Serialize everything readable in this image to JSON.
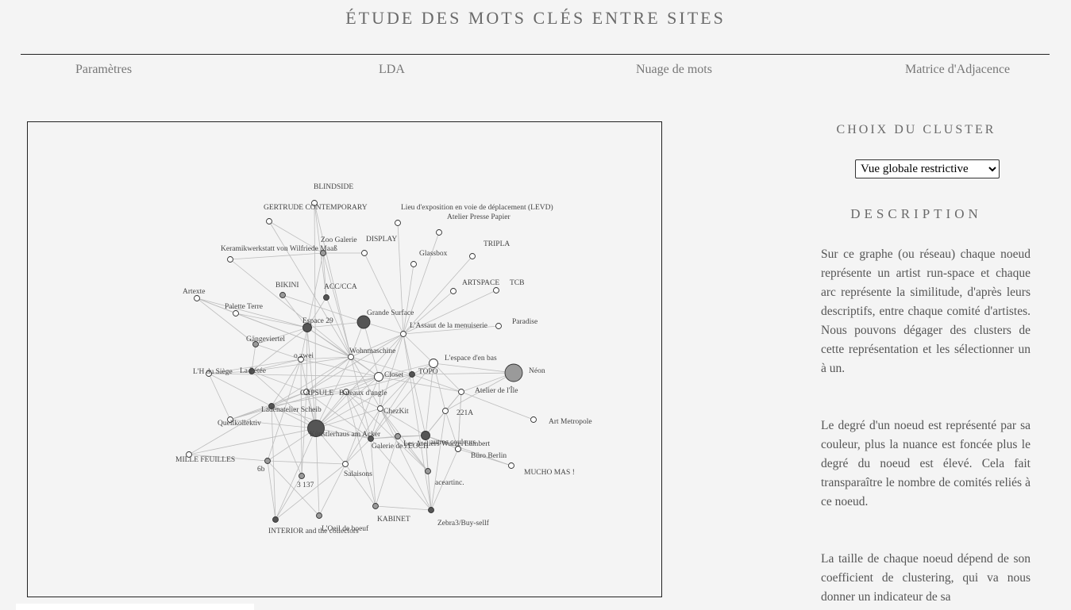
{
  "page": {
    "title": "ÉTUDE DES MOTS CLÉS ENTRE SITES",
    "nav": [
      "Paramètres",
      "LDA",
      "Nuage de mots",
      "Matrice d'Adjacence"
    ]
  },
  "sidebar": {
    "cluster_heading": "CHOIX DU CLUSTER",
    "select_value": "Vue globale restrictive",
    "description_heading": "DESCRIPTION",
    "paragraphs": [
      "Sur ce graphe (ou réseau) chaque noeud représente un artist run-space et chaque arc représente la similitude, d'après leurs descriptifs, entre chaque comité d'artistes. Nous pouvons dégager des clusters de cette représentation et les sélectionner un à un.",
      "Le degré d'un noeud est représenté par sa couleur, plus la nuance est foncée plus le degré du noeud est élevé. Cela fait transparaître le nombre de comités reliés à ce noeud.",
      "La taille de chaque noeud dépend de son coefficient de clustering, qui va nous donner un indicateur de sa"
    ]
  },
  "graph": {
    "nodes": [
      {
        "id": "BLINDSIDE",
        "label": "BLINDSIDE",
        "degree": "low",
        "clustering": "low"
      },
      {
        "id": "GERTRUDE",
        "label": "GERTRUDE CONTEMPORARY",
        "degree": "low",
        "clustering": "low"
      },
      {
        "id": "LEVD",
        "label": "Lieu d'exposition en voie de déplacement (LEVD)",
        "degree": "low",
        "clustering": "low"
      },
      {
        "id": "PRESSE",
        "label": "Atelier Presse Papier",
        "degree": "low",
        "clustering": "low"
      },
      {
        "id": "ZOO",
        "label": "Zoo Galerie",
        "degree": "medium",
        "clustering": "low"
      },
      {
        "id": "DISPLAY",
        "label": "DISPLAY",
        "degree": "low",
        "clustering": "low"
      },
      {
        "id": "TRIPLA",
        "label": "TRIPLA",
        "degree": "low",
        "clustering": "low"
      },
      {
        "id": "KERAMIK",
        "label": "Keramikwerkstatt von Wilfriede Maaß",
        "degree": "low",
        "clustering": "low"
      },
      {
        "id": "GLASSBOX",
        "label": "Glassbox",
        "degree": "low",
        "clustering": "low"
      },
      {
        "id": "BIKINI",
        "label": "BIKINI",
        "degree": "medium",
        "clustering": "low"
      },
      {
        "id": "ACC",
        "label": "ACC/CCA",
        "degree": "high",
        "clustering": "low"
      },
      {
        "id": "ARTSPACE",
        "label": "ARTSPACE",
        "degree": "low",
        "clustering": "low"
      },
      {
        "id": "TCB",
        "label": "TCB",
        "degree": "low",
        "clustering": "low"
      },
      {
        "id": "ARTEXTE",
        "label": "Artexte",
        "degree": "low",
        "clustering": "low"
      },
      {
        "id": "PALETTE",
        "label": "Palette Terre",
        "degree": "low",
        "clustering": "low"
      },
      {
        "id": "GRANDE",
        "label": "Grande Surface",
        "degree": "high",
        "clustering": "high"
      },
      {
        "id": "ESPACE29",
        "label": "Espace 29",
        "degree": "high",
        "clustering": "medium"
      },
      {
        "id": "ASSAUT",
        "label": "L'Assaut de la menuiserie",
        "degree": "low",
        "clustering": "low"
      },
      {
        "id": "PARADISE",
        "label": "Paradise",
        "degree": "low",
        "clustering": "low"
      },
      {
        "id": "GANGE",
        "label": "Gängeviertel",
        "degree": "medium",
        "clustering": "low"
      },
      {
        "id": "OZWEI",
        "label": "o.zwei",
        "degree": "low",
        "clustering": "low"
      },
      {
        "id": "WOHN",
        "label": "Wohnmaschine",
        "degree": "low",
        "clustering": "low"
      },
      {
        "id": "ENBAS",
        "label": "L'espace d'en bas",
        "degree": "low",
        "clustering": "medium"
      },
      {
        "id": "NEON",
        "label": "Néon",
        "degree": "medium",
        "clustering": "high"
      },
      {
        "id": "HDU",
        "label": "L'H du Siège",
        "degree": "low",
        "clustering": "low"
      },
      {
        "id": "LAPETEE",
        "label": "La Pétée",
        "degree": "high",
        "clustering": "low"
      },
      {
        "id": "CLOSET",
        "label": "Closet",
        "degree": "low",
        "clustering": "medium"
      },
      {
        "id": "TOPO",
        "label": "TOPO",
        "degree": "high",
        "clustering": "low"
      },
      {
        "id": "ILE",
        "label": "Atelier de l'Île",
        "degree": "low",
        "clustering": "low"
      },
      {
        "id": "CAPSULE",
        "label": "CAPSULE",
        "degree": "low",
        "clustering": "low"
      },
      {
        "id": "ANGLE",
        "label": "Bateaux d'angle",
        "degree": "low",
        "clustering": "low"
      },
      {
        "id": "LADEN",
        "label": "Ladenatelier Scheib",
        "degree": "high",
        "clustering": "low"
      },
      {
        "id": "CHEZKIT",
        "label": "ChezKit",
        "degree": "low",
        "clustering": "low"
      },
      {
        "id": "A221",
        "label": "221A",
        "degree": "low",
        "clustering": "low"
      },
      {
        "id": "ARTMETRO",
        "label": "Art Metropole",
        "degree": "low",
        "clustering": "low"
      },
      {
        "id": "QUELL",
        "label": "Quellkollektiv",
        "degree": "low",
        "clustering": "low"
      },
      {
        "id": "KUNSTLER",
        "label": "Künstlerhaus am Acker",
        "degree": "high",
        "clustering": "high"
      },
      {
        "id": "EOCH",
        "label": "Galerie de l'EOCH",
        "degree": "high",
        "clustering": "low"
      },
      {
        "id": "ARCHI",
        "label": "Les Ateliers Wurzel",
        "degree": "high",
        "clustering": "medium"
      },
      {
        "id": "AUTRES",
        "label": "autres couleurs",
        "degree": "medium",
        "clustering": "low"
      },
      {
        "id": "LAMBERT",
        "label": "Lambert",
        "degree": "high",
        "clustering": "low"
      },
      {
        "id": "BURO",
        "label": "Büro Berlin",
        "degree": "low",
        "clustering": "low"
      },
      {
        "id": "MILLE",
        "label": "MILLE FEUILLES",
        "degree": "low",
        "clustering": "low"
      },
      {
        "id": "B6",
        "label": "6b",
        "degree": "medium",
        "clustering": "low"
      },
      {
        "id": "MUCHO",
        "label": "MUCHO MAS !",
        "degree": "low",
        "clustering": "low"
      },
      {
        "id": "S137",
        "label": "3 137",
        "degree": "medium",
        "clustering": "low"
      },
      {
        "id": "SALAISONS",
        "label": "Salaisons",
        "degree": "low",
        "clustering": "low"
      },
      {
        "id": "ACEART",
        "label": "aceartinc.",
        "degree": "medium",
        "clustering": "low"
      },
      {
        "id": "KABINET",
        "label": "KABINET",
        "degree": "medium",
        "clustering": "low"
      },
      {
        "id": "ZEBRA",
        "label": "Zebra3/Buy-sellf",
        "degree": "high",
        "clustering": "low"
      },
      {
        "id": "INTERIOR",
        "label": "INTERIOR and the collectors",
        "degree": "high",
        "clustering": "low"
      },
      {
        "id": "OEIL",
        "label": "L'Oeil de boeuf",
        "degree": "medium",
        "clustering": "low"
      }
    ],
    "links": [
      [
        "GRANDE",
        "ASSAUT"
      ],
      [
        "GRANDE",
        "WOHN"
      ],
      [
        "GRANDE",
        "ESPACE29"
      ],
      [
        "GRANDE",
        "CLOSET"
      ],
      [
        "GRANDE",
        "BIKINI"
      ],
      [
        "WOHN",
        "ESPACE29"
      ],
      [
        "WOHN",
        "ACC"
      ],
      [
        "WOHN",
        "ZOO"
      ],
      [
        "WOHN",
        "ASSAUT"
      ],
      [
        "WOHN",
        "KERAMIK"
      ],
      [
        "WOHN",
        "GERTRUDE"
      ],
      [
        "WOHN",
        "BLINDSIDE"
      ],
      [
        "WOHN",
        "OZWEI"
      ],
      [
        "WOHN",
        "CLOSET"
      ],
      [
        "WOHN",
        "TOPO"
      ],
      [
        "WOHN",
        "KUNSTLER"
      ],
      [
        "WOHN",
        "CAPSULE"
      ],
      [
        "WOHN",
        "LADEN"
      ],
      [
        "WOHN",
        "CHEZKIT"
      ],
      [
        "WOHN",
        "EOCH"
      ],
      [
        "WOHN",
        "ARTEXTE"
      ],
      [
        "WOHN",
        "PALETTE"
      ],
      [
        "WOHN",
        "LAPETEE"
      ],
      [
        "ASSAUT",
        "GLASSBOX"
      ],
      [
        "ASSAUT",
        "LEVD"
      ],
      [
        "ASSAUT",
        "PRESSE"
      ],
      [
        "ASSAUT",
        "TRIPLA"
      ],
      [
        "ASSAUT",
        "ARTSPACE"
      ],
      [
        "ASSAUT",
        "TCB"
      ],
      [
        "ASSAUT",
        "PARADISE"
      ],
      [
        "ASSAUT",
        "ENBAS"
      ],
      [
        "ASSAUT",
        "TOPO"
      ],
      [
        "ASSAUT",
        "CLOSET"
      ],
      [
        "ASSAUT",
        "DISPLAY"
      ],
      [
        "ASSAUT",
        "CAPSULE"
      ],
      [
        "ASSAUT",
        "KUNSTLER"
      ],
      [
        "ASSAUT",
        "CHEZKIT"
      ],
      [
        "ASSAUT",
        "ZEBRA"
      ],
      [
        "ENBAS",
        "NEON"
      ],
      [
        "ENBAS",
        "TOPO"
      ],
      [
        "ENBAS",
        "ILE"
      ],
      [
        "ENBAS",
        "CLOSET"
      ],
      [
        "ENBAS",
        "A221"
      ],
      [
        "ENBAS",
        "ARCHI"
      ],
      [
        "ENBAS",
        "EOCH"
      ],
      [
        "ILE",
        "NEON"
      ],
      [
        "ILE",
        "ARTMETRO"
      ],
      [
        "ILE",
        "A221"
      ],
      [
        "ILE",
        "TOPO"
      ],
      [
        "ILE",
        "BURO"
      ],
      [
        "ILE",
        "ARCHI"
      ],
      [
        "ILE",
        "CLOSET"
      ],
      [
        "ILE",
        "LAMBERT"
      ],
      [
        "TOPO",
        "CLOSET"
      ],
      [
        "TOPO",
        "CHEZKIT"
      ],
      [
        "TOPO",
        "EOCH"
      ],
      [
        "TOPO",
        "ARCHI"
      ],
      [
        "TOPO",
        "NEON"
      ],
      [
        "TOPO",
        "ANGLE"
      ],
      [
        "TOPO",
        "KUNSTLER"
      ],
      [
        "CLOSET",
        "ANGLE"
      ],
      [
        "CLOSET",
        "CHEZKIT"
      ],
      [
        "CLOSET",
        "KUNSTLER"
      ],
      [
        "CLOSET",
        "CAPSULE"
      ],
      [
        "CLOSET",
        "OZWEI"
      ],
      [
        "CLOSET",
        "HDU"
      ],
      [
        "CLOSET",
        "QUELL"
      ],
      [
        "CLOSET",
        "SALAISONS"
      ],
      [
        "CLOSET",
        "ESPACE29"
      ],
      [
        "ESPACE29",
        "OZWEI"
      ],
      [
        "ESPACE29",
        "ACC"
      ],
      [
        "ESPACE29",
        "BIKINI"
      ],
      [
        "ESPACE29",
        "ZOO"
      ],
      [
        "ESPACE29",
        "GANGE"
      ],
      [
        "ESPACE29",
        "PALETTE"
      ],
      [
        "ESPACE29",
        "ARTEXTE"
      ],
      [
        "ESPACE29",
        "LAPETEE"
      ],
      [
        "ESPACE29",
        "KUNSTLER"
      ],
      [
        "ESPACE29",
        "CAPSULE"
      ],
      [
        "OZWEI",
        "GANGE"
      ],
      [
        "OZWEI",
        "LAPETEE"
      ],
      [
        "OZWEI",
        "HDU"
      ],
      [
        "OZWEI",
        "LADEN"
      ],
      [
        "OZWEI",
        "KUNSTLER"
      ],
      [
        "OZWEI",
        "S137"
      ],
      [
        "OZWEI",
        "B6"
      ],
      [
        "ZOO",
        "DISPLAY"
      ],
      [
        "ZOO",
        "KERAMIK"
      ],
      [
        "ZOO",
        "ACC"
      ],
      [
        "BLINDSIDE",
        "ACC"
      ],
      [
        "BLINDSIDE",
        "KUNSTLER"
      ],
      [
        "GERTRUDE",
        "ZOO"
      ],
      [
        "KUNSTLER",
        "CAPSULE"
      ],
      [
        "KUNSTLER",
        "ANGLE"
      ],
      [
        "KUNSTLER",
        "EOCH"
      ],
      [
        "KUNSTLER",
        "LADEN"
      ],
      [
        "KUNSTLER",
        "QUELL"
      ],
      [
        "KUNSTLER",
        "MILLE"
      ],
      [
        "KUNSTLER",
        "B6"
      ],
      [
        "KUNSTLER",
        "SALAISONS"
      ],
      [
        "KUNSTLER",
        "CHEZKIT"
      ],
      [
        "KUNSTLER",
        "LAPETEE"
      ],
      [
        "KUNSTLER",
        "INTERIOR"
      ],
      [
        "CAPSULE",
        "ANGLE"
      ],
      [
        "CAPSULE",
        "LADEN"
      ],
      [
        "CAPSULE",
        "EOCH"
      ],
      [
        "CAPSULE",
        "S137"
      ],
      [
        "CAPSULE",
        "LAPETEE"
      ],
      [
        "CAPSULE",
        "QUELL"
      ],
      [
        "ANGLE",
        "CHEZKIT"
      ],
      [
        "ANGLE",
        "EOCH"
      ],
      [
        "ANGLE",
        "LADEN"
      ],
      [
        "ANGLE",
        "KABINET"
      ],
      [
        "ANGLE",
        "ACEART"
      ],
      [
        "CHEZKIT",
        "EOCH"
      ],
      [
        "CHEZKIT",
        "ARCHI"
      ],
      [
        "CHEZKIT",
        "SALAISONS"
      ],
      [
        "CHEZKIT",
        "ACEART"
      ],
      [
        "CHEZKIT",
        "ZEBRA"
      ],
      [
        "CHEZKIT",
        "AUTRES"
      ],
      [
        "EOCH",
        "ARCHI"
      ],
      [
        "EOCH",
        "AUTRES"
      ],
      [
        "EOCH",
        "SALAISONS"
      ],
      [
        "EOCH",
        "KABINET"
      ],
      [
        "EOCH",
        "ZEBRA"
      ],
      [
        "EOCH",
        "LADEN"
      ],
      [
        "ARCHI",
        "LAMBERT"
      ],
      [
        "ARCHI",
        "A221"
      ],
      [
        "ARCHI",
        "ACEART"
      ],
      [
        "ARCHI",
        "ZEBRA"
      ],
      [
        "ARCHI",
        "MUCHO"
      ],
      [
        "ARCHI",
        "AUTRES"
      ],
      [
        "LAMBERT",
        "BURO"
      ],
      [
        "LAMBERT",
        "ZEBRA"
      ],
      [
        "LAMBERT",
        "MUCHO"
      ],
      [
        "LAMBERT",
        "A221"
      ],
      [
        "AUTRES",
        "ACEART"
      ],
      [
        "AUTRES",
        "KABINET"
      ],
      [
        "SALAISONS",
        "OEIL"
      ],
      [
        "SALAISONS",
        "INTERIOR"
      ],
      [
        "SALAISONS",
        "B6"
      ],
      [
        "SALAISONS",
        "KABINET"
      ],
      [
        "KABINET",
        "ZEBRA"
      ],
      [
        "B6",
        "INTERIOR"
      ],
      [
        "B6",
        "OEIL"
      ],
      [
        "B6",
        "MILLE"
      ],
      [
        "S137",
        "INTERIOR"
      ],
      [
        "S137",
        "LADEN"
      ],
      [
        "LADEN",
        "INTERIOR"
      ],
      [
        "LADEN",
        "HDU"
      ],
      [
        "QUELL",
        "LADEN"
      ],
      [
        "QUELL",
        "HDU"
      ],
      [
        "MILLE",
        "LADEN"
      ],
      [
        "ACEART",
        "ZEBRA"
      ],
      [
        "OEIL",
        "KUNSTLER"
      ],
      [
        "ZEBRA",
        "A221"
      ],
      [
        "A221",
        "NEON"
      ],
      [
        "LAPETEE",
        "HDU"
      ],
      [
        "LAPETEE",
        "GANGE"
      ],
      [
        "ARTEXTE",
        "PALETTE"
      ],
      [
        "ARTEXTE",
        "GANGE"
      ]
    ]
  }
}
